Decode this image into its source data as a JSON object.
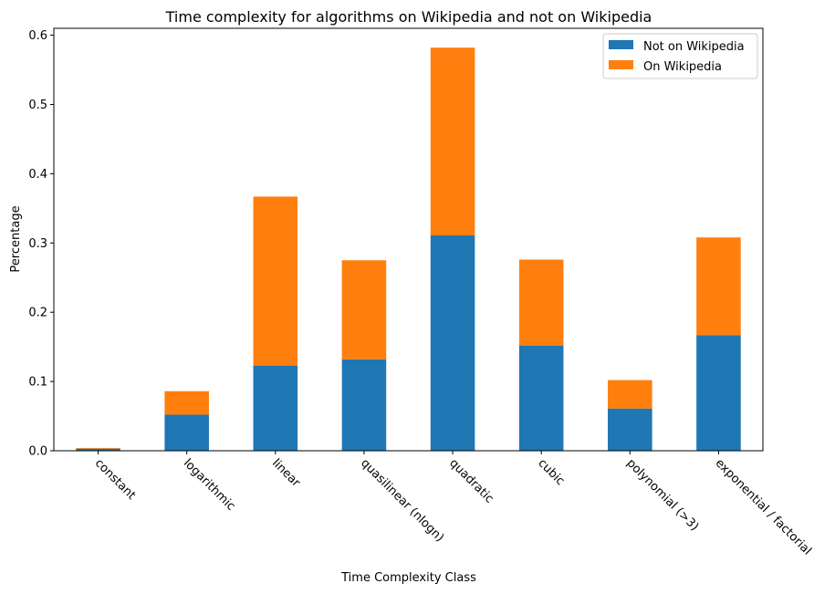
{
  "chart_data": {
    "type": "bar",
    "stacked": true,
    "title": "Time complexity for algorithms on Wikipedia and not on Wikipedia",
    "xlabel": "Time Complexity Class",
    "ylabel": "Percentage",
    "categories": [
      "constant",
      "logarithmic",
      "linear",
      "quasilinear (nlogn)",
      "quadratic",
      "cubic",
      "polynomial (>3)",
      "exponential / factorial"
    ],
    "series": [
      {
        "name": "Not on Wikipedia",
        "color": "#1f77b4",
        "values": [
          0.003,
          0.052,
          0.123,
          0.132,
          0.311,
          0.152,
          0.061,
          0.167
        ]
      },
      {
        "name": "On Wikipedia",
        "color": "#ff7f0e",
        "values": [
          0.001,
          0.034,
          0.244,
          0.143,
          0.271,
          0.124,
          0.041,
          0.141
        ]
      }
    ],
    "ylim": [
      0,
      0.61
    ],
    "yticks": [
      "0.0",
      "0.1",
      "0.2",
      "0.3",
      "0.4",
      "0.5",
      "0.6"
    ],
    "legend": "top-right",
    "grid": false
  }
}
